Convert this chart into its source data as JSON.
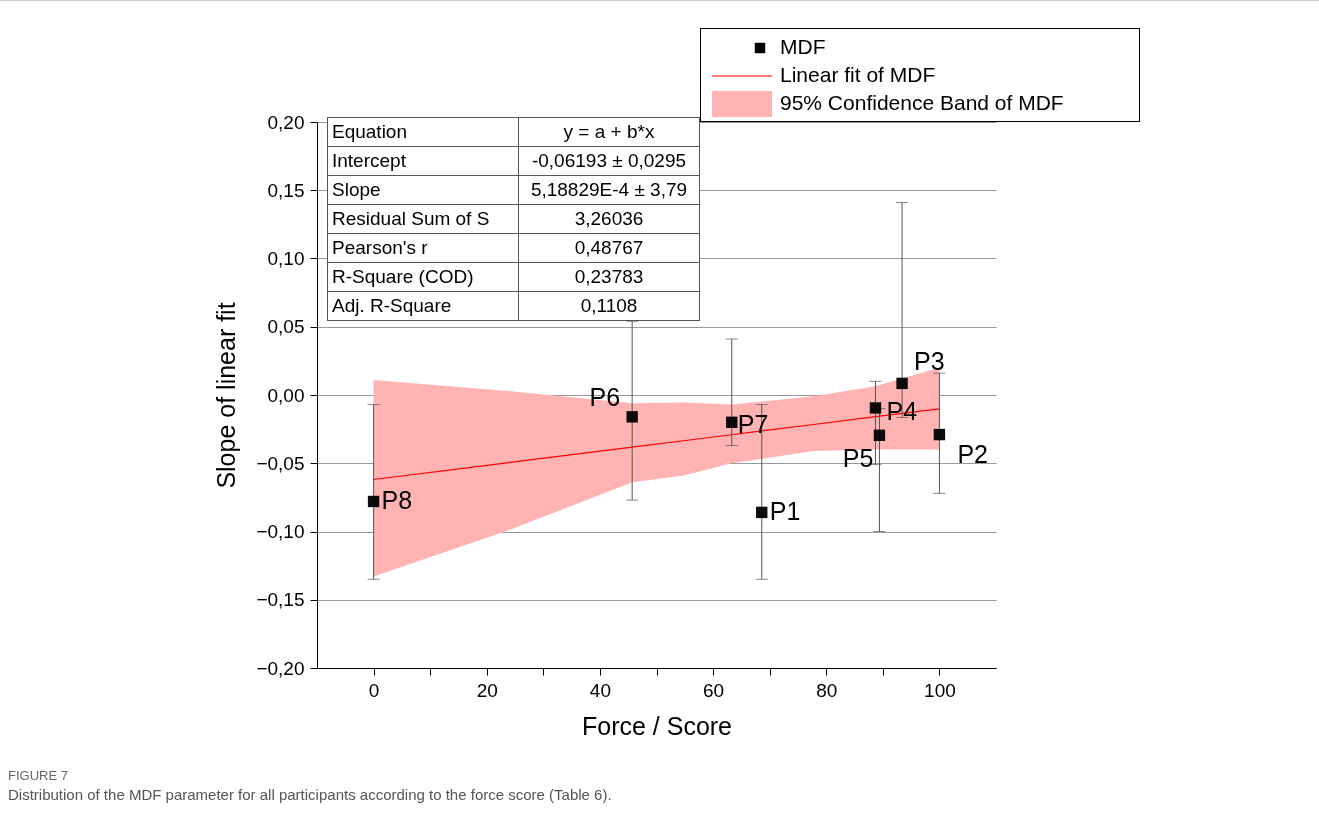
{
  "chart_data": {
    "type": "scatter",
    "title": "FIGURE 7",
    "subtitle": "Distribution of the MDF parameter for all participants according to the force score (Table 6).",
    "xlabel": "Force / Score",
    "ylabel": "Slope of linear fit",
    "xlim": [
      -10,
      110
    ],
    "ylim": [
      -0.2,
      0.2
    ],
    "xticks": [
      0,
      {
        "value": 10,
        "label": null
      },
      20,
      {
        "value": 30,
        "label": null
      },
      40,
      {
        "value": 50,
        "label": null
      },
      60,
      {
        "value": 70,
        "label": null
      },
      80,
      {
        "value": 90,
        "label": null
      },
      100
    ],
    "yticks": [
      {
        "value": -0.2,
        "label": "−0,20"
      },
      {
        "value": -0.15,
        "label": "−0,15"
      },
      {
        "value": -0.1,
        "label": "−0,10"
      },
      {
        "value": -0.05,
        "label": "−0,05"
      },
      {
        "value": 0,
        "label": "0,00"
      },
      {
        "value": 0.05,
        "label": "0,05"
      },
      {
        "value": 0.1,
        "label": "0,10"
      },
      {
        "value": 0.15,
        "label": "0,15"
      },
      {
        "value": 0.2,
        "label": "0,20"
      }
    ],
    "grid": "y",
    "legend": "top right",
    "series": [
      {
        "name": "MDF",
        "marker": "square",
        "color": "#000000",
        "x": [
          0,
          45.7,
          63.3,
          68.6,
          88.7,
          89.4,
          93.4,
          100
        ],
        "values": [
          -0.078,
          -0.016,
          -0.02,
          -0.086,
          -0.0095,
          -0.0295,
          0.0085,
          -0.029
        ],
        "errors": [
          [
            -0.135,
            -0.007
          ],
          [
            -0.077,
            0.054
          ],
          [
            -0.037,
            0.041
          ],
          [
            -0.135,
            -0.007
          ],
          [
            -0.051,
            0.01
          ],
          [
            -0.1,
            -0.01
          ],
          [
            -0.0165,
            0.141
          ],
          [
            -0.072,
            0.016
          ]
        ]
      },
      {
        "name": "Linear fit of MDF",
        "type": "line",
        "color": "#ff0000",
        "x": [
          0,
          23.6,
          45.7,
          54.8,
          63.3,
          77.8,
          88.7,
          100
        ],
        "values": [
          -0.0619,
          -0.0497,
          -0.0382,
          -0.0335,
          -0.0291,
          -0.0216,
          -0.0159,
          -0.0101
        ],
        "lower": [
          -0.133,
          -0.0995,
          -0.064,
          -0.059,
          -0.05,
          -0.041,
          -0.04,
          -0.04
        ],
        "upper": [
          0.011,
          0.003,
          -0.006,
          -0.0055,
          -0.007,
          -0.001,
          0.0065,
          0.02
        ]
      }
    ],
    "annotations": [
      "Equation",
      "y = a + b*x",
      "Intercept",
      "-0,06193 ± 0,0295",
      "Slope",
      "5,18829E-4 ± 3,79",
      "Residual Sum of S",
      "3,26036",
      "Pearson's r",
      "0,48767",
      "R-Square (COD)",
      "0,23783",
      "Adj. R-Square",
      "0,1108",
      "95% Confidence Band of MDF",
      {
        "text": "P8",
        "x": 0,
        "y": -0.078
      },
      {
        "text": "P6",
        "x": 45.7,
        "y": -0.016
      },
      {
        "text": "P7",
        "x": 63.3,
        "y": -0.02
      },
      {
        "text": "P1",
        "x": 68.6,
        "y": -0.086
      },
      {
        "text": "P4",
        "x": 88.7,
        "y": -0.0095
      },
      {
        "text": "P5",
        "x": 89.4,
        "y": -0.0295
      },
      {
        "text": "P3",
        "x": 93.4,
        "y": 0.0085
      },
      {
        "text": "P2",
        "x": 100,
        "y": -0.029
      }
    ]
  }
}
